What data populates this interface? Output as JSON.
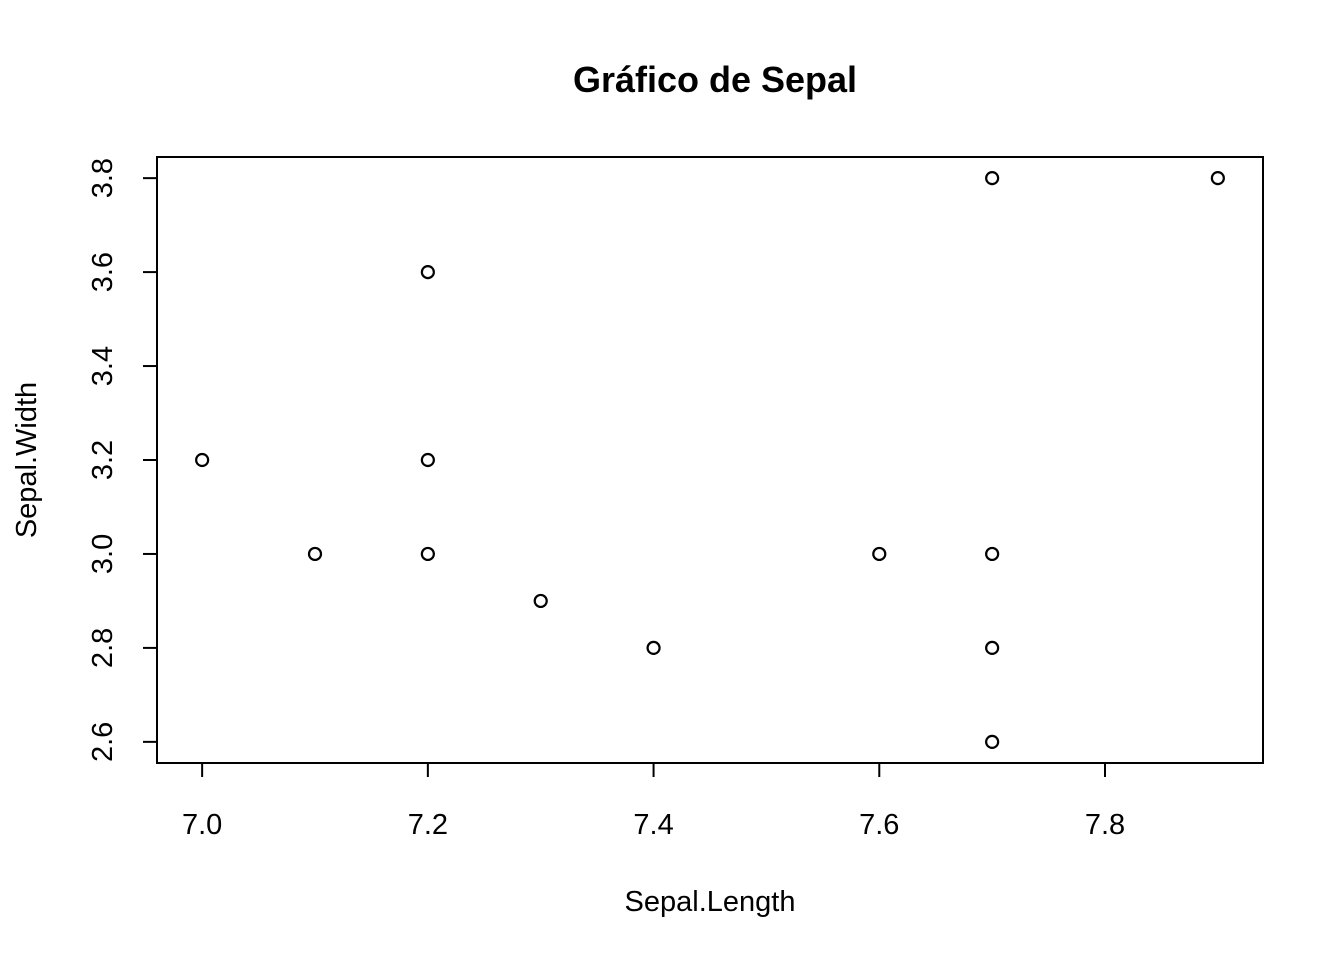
{
  "chart_data": {
    "type": "scatter",
    "title": "Gráfico de Sepal",
    "xlabel": "Sepal.Length",
    "ylabel": "Sepal.Width",
    "xlim": [
      6.96,
      7.94
    ],
    "ylim": [
      2.555,
      3.845
    ],
    "xticks": [
      7.0,
      7.2,
      7.4,
      7.6,
      7.8
    ],
    "xtick_labels": [
      "7.0",
      "7.2",
      "7.4",
      "7.6",
      "7.8"
    ],
    "yticks": [
      2.6,
      2.8,
      3.0,
      3.2,
      3.4,
      3.6,
      3.8
    ],
    "ytick_labels": [
      "2.6",
      "2.8",
      "3.0",
      "3.2",
      "3.4",
      "3.6",
      "3.8"
    ],
    "grid": false,
    "marker": "open-circle",
    "points": [
      {
        "x": 7.0,
        "y": 3.2
      },
      {
        "x": 7.1,
        "y": 3.0
      },
      {
        "x": 7.2,
        "y": 3.6
      },
      {
        "x": 7.2,
        "y": 3.2
      },
      {
        "x": 7.2,
        "y": 3.0
      },
      {
        "x": 7.3,
        "y": 2.9
      },
      {
        "x": 7.4,
        "y": 2.8
      },
      {
        "x": 7.6,
        "y": 3.0
      },
      {
        "x": 7.7,
        "y": 3.8
      },
      {
        "x": 7.7,
        "y": 3.0
      },
      {
        "x": 7.7,
        "y": 2.8
      },
      {
        "x": 7.7,
        "y": 2.6
      },
      {
        "x": 7.9,
        "y": 3.8
      }
    ]
  }
}
